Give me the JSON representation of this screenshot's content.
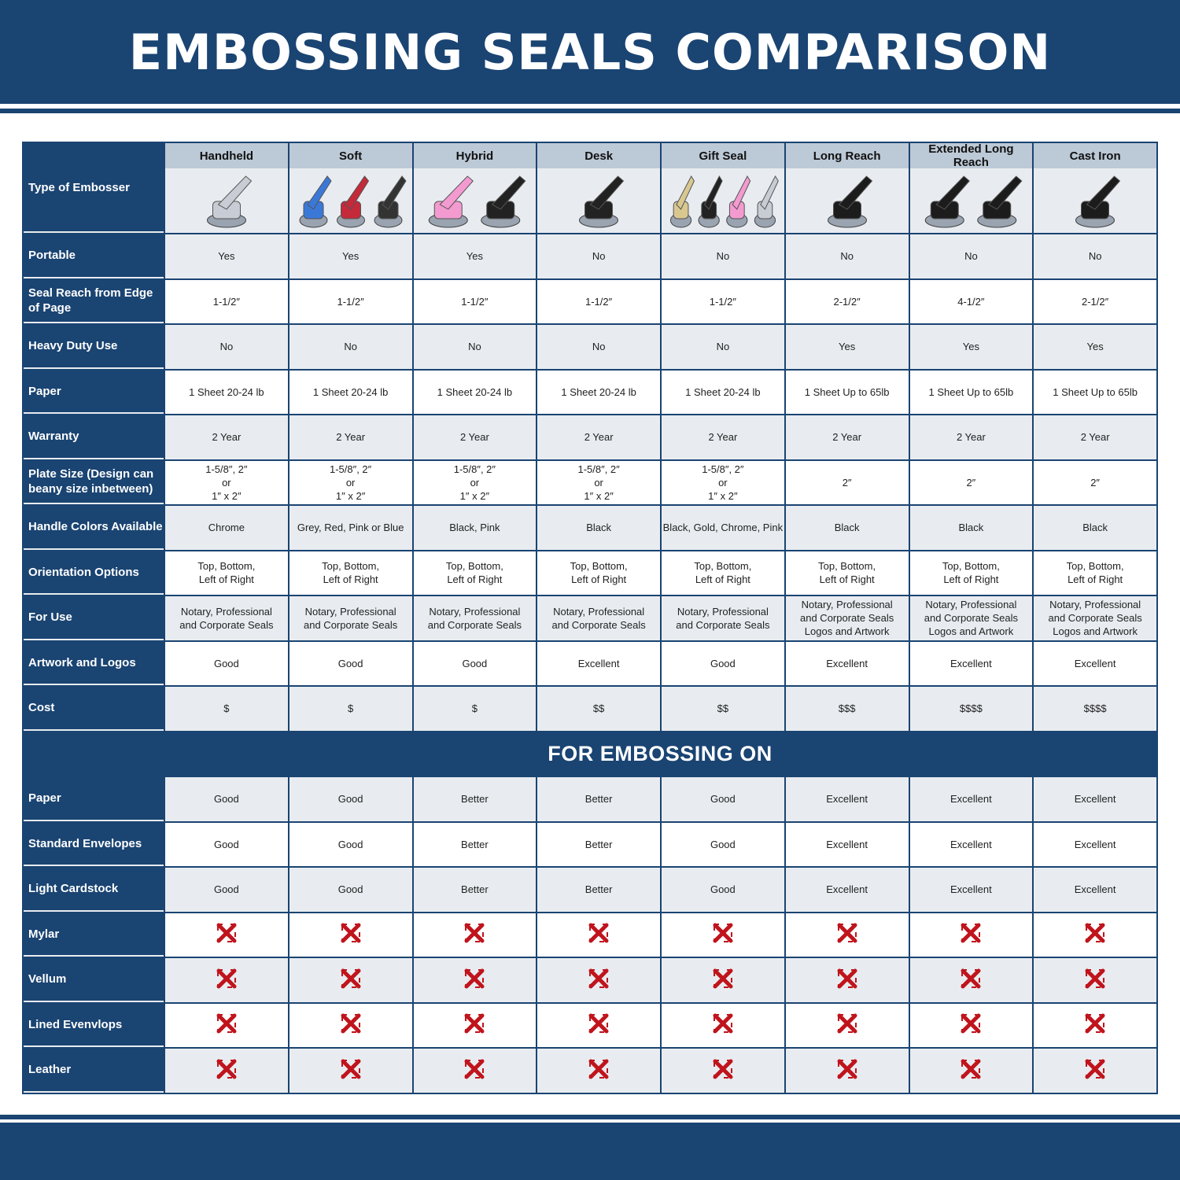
{
  "title": "EMBOSSING SEALS COMPARISON",
  "header_label": "Type of Embosser",
  "columns": [
    {
      "name": "Handheld",
      "handle_colors": [
        "#c8ccd4"
      ]
    },
    {
      "name": "Soft",
      "handle_colors": [
        "#3a78d8",
        "#c42a3a",
        "#333333"
      ]
    },
    {
      "name": "Hybrid",
      "handle_colors": [
        "#f39bd0",
        "#222222"
      ]
    },
    {
      "name": "Desk",
      "handle_colors": [
        "#222222"
      ]
    },
    {
      "name": "Gift Seal",
      "handle_colors": [
        "#d8c890",
        "#222222",
        "#f39bd0",
        "#c8ccd4"
      ]
    },
    {
      "name": "Long Reach",
      "handle_colors": [
        "#1c1c1c"
      ]
    },
    {
      "name": "Extended Long Reach",
      "handle_colors": [
        "#1c1c1c",
        "#1c1c1c"
      ]
    },
    {
      "name": "Cast Iron",
      "handle_colors": [
        "#1c1c1c"
      ]
    }
  ],
  "rows": [
    {
      "label": "Portable",
      "values": [
        "Yes",
        "Yes",
        "Yes",
        "No",
        "No",
        "No",
        "No",
        "No"
      ]
    },
    {
      "label": "Seal Reach from Edge of Page",
      "values": [
        "1-1/2″",
        "1-1/2″",
        "1-1/2″",
        "1-1/2″",
        "1-1/2″",
        "2-1/2″",
        "4-1/2″",
        "2-1/2″"
      ]
    },
    {
      "label": "Heavy Duty Use",
      "values": [
        "No",
        "No",
        "No",
        "No",
        "No",
        "Yes",
        "Yes",
        "Yes"
      ]
    },
    {
      "label": "Paper",
      "values": [
        "1 Sheet 20-24 lb",
        "1 Sheet 20-24 lb",
        "1 Sheet 20-24 lb",
        "1 Sheet 20-24 lb",
        "1 Sheet 20-24 lb",
        "1 Sheet Up to 65lb",
        "1 Sheet Up to 65lb",
        "1 Sheet Up to 65lb"
      ]
    },
    {
      "label": "Warranty",
      "values": [
        "2 Year",
        "2 Year",
        "2 Year",
        "2 Year",
        "2 Year",
        "2 Year",
        "2 Year",
        "2 Year"
      ]
    },
    {
      "label": "Plate Size (Design can beany size inbetween)",
      "values": [
        "1-5/8″, 2″\nor\n1″ x 2″",
        "1-5/8″, 2″\nor\n1″ x 2″",
        "1-5/8″, 2″\nor\n1″ x 2″",
        "1-5/8″, 2″\nor\n1″ x 2″",
        "1-5/8″, 2″\nor\n1″ x 2″",
        "2″",
        "2″",
        "2″"
      ]
    },
    {
      "label": "Handle Colors Available",
      "values": [
        "Chrome",
        "Grey, Red, Pink or Blue",
        "Black, Pink",
        "Black",
        "Black, Gold, Chrome, Pink",
        "Black",
        "Black",
        "Black"
      ]
    },
    {
      "label": "Orientation Options",
      "values": [
        "Top, Bottom,\nLeft of Right",
        "Top, Bottom,\nLeft of Right",
        "Top, Bottom,\nLeft of Right",
        "Top, Bottom,\nLeft of Right",
        "Top, Bottom,\nLeft of Right",
        "Top, Bottom,\nLeft of Right",
        "Top, Bottom,\nLeft of Right",
        "Top, Bottom,\nLeft of Right"
      ]
    },
    {
      "label": "For Use",
      "values": [
        "Notary, Professional\nand Corporate Seals",
        "Notary, Professional\nand Corporate Seals",
        "Notary, Professional\nand Corporate Seals",
        "Notary, Professional\nand Corporate Seals",
        "Notary, Professional\nand Corporate Seals",
        "Notary, Professional\nand Corporate Seals\nLogos and Artwork",
        "Notary, Professional\nand Corporate Seals\nLogos and Artwork",
        "Notary, Professional\nand Corporate Seals\nLogos and Artwork"
      ]
    },
    {
      "label": "Artwork and Logos",
      "values": [
        "Good",
        "Good",
        "Good",
        "Excellent",
        "Good",
        "Excellent",
        "Excellent",
        "Excellent"
      ]
    },
    {
      "label": "Cost",
      "values": [
        "$",
        "$",
        "$",
        "$$",
        "$$",
        "$$$",
        "$$$$",
        "$$$$"
      ]
    }
  ],
  "section_title": "FOR EMBOSSING ON",
  "embossing_rows": [
    {
      "label": "Paper",
      "values": [
        "Good",
        "Good",
        "Better",
        "Better",
        "Good",
        "Excellent",
        "Excellent",
        "Excellent"
      ]
    },
    {
      "label": "Standard Envelopes",
      "values": [
        "Good",
        "Good",
        "Better",
        "Better",
        "Good",
        "Excellent",
        "Excellent",
        "Excellent"
      ]
    },
    {
      "label": "Light Cardstock",
      "values": [
        "Good",
        "Good",
        "Better",
        "Better",
        "Good",
        "Excellent",
        "Excellent",
        "Excellent"
      ]
    },
    {
      "label": "Mylar",
      "icon": "red-x-icon"
    },
    {
      "label": "Vellum",
      "icon": "red-x-icon"
    },
    {
      "label": "Lined Evenvlops",
      "icon": "red-x-icon"
    },
    {
      "label": "Leather",
      "icon": "red-x-icon"
    }
  ],
  "colors": {
    "navy": "#1a4472",
    "header_cell": "#bcc9d6",
    "row_alt": "#e8ecf0",
    "x_red": "#c0141c"
  }
}
